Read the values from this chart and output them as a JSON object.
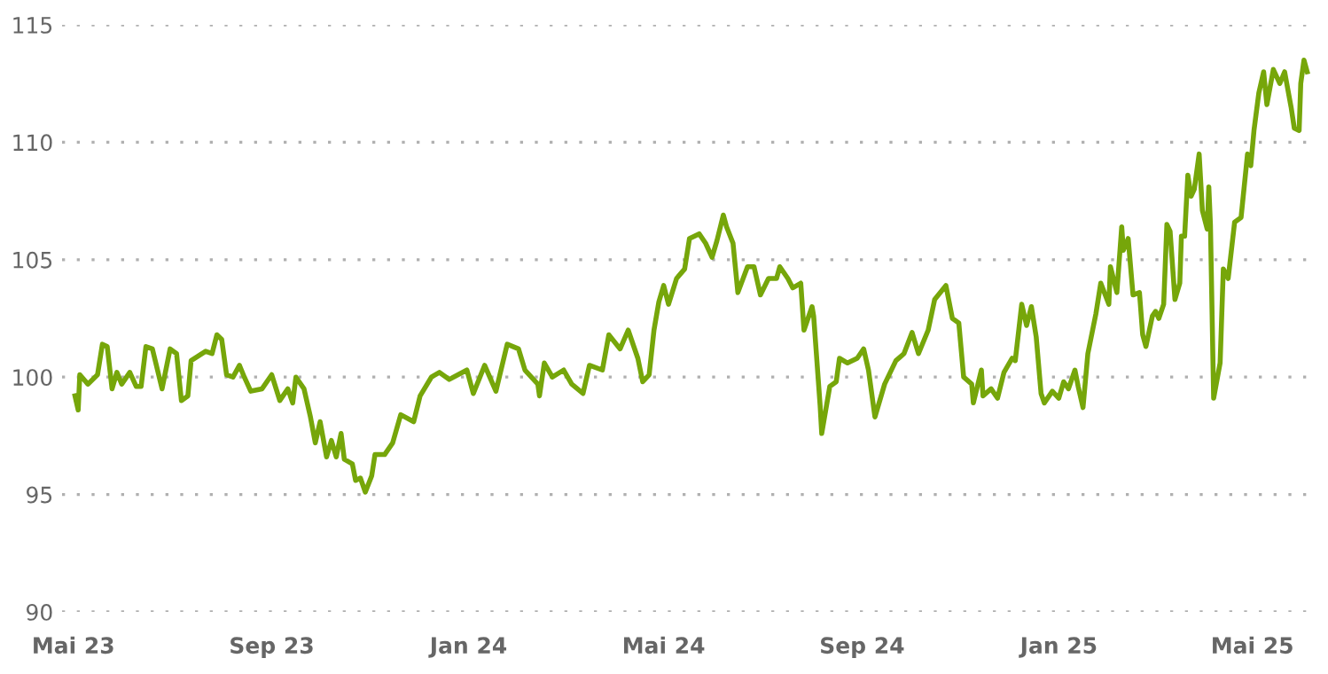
{
  "chart_data": {
    "type": "line",
    "x": [
      "2023-05-02",
      "2023-05-04",
      "2023-05-05",
      "2023-05-10",
      "2023-05-16",
      "2023-05-19",
      "2023-05-22",
      "2023-05-25",
      "2023-05-28",
      "2023-05-31",
      "2023-06-05",
      "2023-06-09",
      "2023-06-12",
      "2023-06-15",
      "2023-06-19",
      "2023-06-25",
      "2023-06-30",
      "2023-07-04",
      "2023-07-07",
      "2023-07-11",
      "2023-07-13",
      "2023-07-22",
      "2023-07-26",
      "2023-07-29",
      "2023-08-01",
      "2023-08-04",
      "2023-08-08",
      "2023-08-12",
      "2023-08-15",
      "2023-08-19",
      "2023-08-26",
      "2023-09-01",
      "2023-09-06",
      "2023-09-11",
      "2023-09-14",
      "2023-09-16",
      "2023-09-21",
      "2023-09-25",
      "2023-09-28",
      "2023-10-01",
      "2023-10-05",
      "2023-10-08",
      "2023-10-11",
      "2023-10-14",
      "2023-10-16",
      "2023-10-21",
      "2023-10-23",
      "2023-10-26",
      "2023-10-29",
      "2023-11-02",
      "2023-11-04",
      "2023-11-10",
      "2023-11-15",
      "2023-11-20",
      "2023-11-28",
      "2023-12-02",
      "2023-12-09",
      "2023-12-14",
      "2023-12-20",
      "2023-12-31",
      "2024-01-04",
      "2024-01-11",
      "2024-01-18",
      "2024-01-25",
      "2024-02-01",
      "2024-02-05",
      "2024-02-13",
      "2024-02-14",
      "2024-02-17",
      "2024-02-22",
      "2024-02-29",
      "2024-03-05",
      "2024-03-12",
      "2024-03-16",
      "2024-03-24",
      "2024-03-28",
      "2024-04-04",
      "2024-04-09",
      "2024-04-15",
      "2024-04-18",
      "2024-04-22",
      "2024-04-25",
      "2024-04-28",
      "2024-05-01",
      "2024-05-04",
      "2024-05-09",
      "2024-05-14",
      "2024-05-17",
      "2024-05-23",
      "2024-05-27",
      "2024-05-31",
      "2024-06-03",
      "2024-06-07",
      "2024-06-09",
      "2024-06-13",
      "2024-06-16",
      "2024-06-22",
      "2024-06-26",
      "2024-06-30",
      "2024-07-05",
      "2024-07-10",
      "2024-07-12",
      "2024-07-17",
      "2024-07-20",
      "2024-07-25",
      "2024-07-27",
      "2024-08-01",
      "2024-08-02",
      "2024-08-06",
      "2024-08-07",
      "2024-08-12",
      "2024-08-16",
      "2024-08-18",
      "2024-08-23",
      "2024-08-29",
      "2024-09-02",
      "2024-09-05",
      "2024-09-09",
      "2024-09-15",
      "2024-09-22",
      "2024-09-27",
      "2024-10-02",
      "2024-10-06",
      "2024-10-12",
      "2024-10-16",
      "2024-10-23",
      "2024-10-27",
      "2024-10-31",
      "2024-11-03",
      "2024-11-08",
      "2024-11-09",
      "2024-11-14",
      "2024-11-15",
      "2024-11-20",
      "2024-11-24",
      "2024-11-28",
      "2024-12-03",
      "2024-12-05",
      "2024-12-09",
      "2024-12-12",
      "2024-12-15",
      "2024-12-18",
      "2024-12-21",
      "2024-12-23",
      "2024-12-28",
      "2025-01-01",
      "2025-01-04",
      "2025-01-07",
      "2025-01-11",
      "2025-01-13",
      "2025-01-16",
      "2025-01-19",
      "2025-01-24",
      "2025-01-27",
      "2025-02-01",
      "2025-02-02",
      "2025-02-06",
      "2025-02-09",
      "2025-02-10",
      "2025-02-13",
      "2025-02-16",
      "2025-02-20",
      "2025-02-22",
      "2025-02-24",
      "2025-02-28",
      "2025-03-02",
      "2025-03-04",
      "2025-03-07",
      "2025-03-09",
      "2025-03-11",
      "2025-03-14",
      "2025-03-17",
      "2025-03-18",
      "2025-03-20",
      "2025-03-22",
      "2025-03-24",
      "2025-03-26",
      "2025-03-29",
      "2025-03-31",
      "2025-04-03",
      "2025-04-04",
      "2025-04-05",
      "2025-04-07",
      "2025-04-11",
      "2025-04-13",
      "2025-04-16",
      "2025-04-20",
      "2025-04-24",
      "2025-04-28",
      "2025-04-30",
      "2025-05-02",
      "2025-05-05",
      "2025-05-08",
      "2025-05-10",
      "2025-05-14",
      "2025-05-18",
      "2025-05-21",
      "2025-05-25",
      "2025-05-27",
      "2025-05-30",
      "2025-05-31",
      "2025-06-02",
      "2025-06-04"
    ],
    "series": [
      {
        "color": "#76a60a",
        "values": [
          99.2,
          98.6,
          100.1,
          99.7,
          100.1,
          101.4,
          101.3,
          99.5,
          100.2,
          99.7,
          100.2,
          99.6,
          99.6,
          101.3,
          101.2,
          99.5,
          101.2,
          101.0,
          99.0,
          99.2,
          100.7,
          101.1,
          101.0,
          101.8,
          101.6,
          100.1,
          100.0,
          100.5,
          100.0,
          99.4,
          99.5,
          100.1,
          99.0,
          99.5,
          98.9,
          100.0,
          99.5,
          98.3,
          97.2,
          98.1,
          96.6,
          97.3,
          96.6,
          97.6,
          96.5,
          96.3,
          95.6,
          95.7,
          95.1,
          95.8,
          96.7,
          96.7,
          97.2,
          98.4,
          98.1,
          99.2,
          100.0,
          100.2,
          99.9,
          100.3,
          99.3,
          100.5,
          99.4,
          101.4,
          101.2,
          100.3,
          99.7,
          99.2,
          100.6,
          100.0,
          100.3,
          99.7,
          99.3,
          100.5,
          100.3,
          101.8,
          101.2,
          102.0,
          100.8,
          99.8,
          100.1,
          102.0,
          103.2,
          103.9,
          103.1,
          104.2,
          104.6,
          105.9,
          106.1,
          105.7,
          105.1,
          105.8,
          106.9,
          106.4,
          105.7,
          103.6,
          104.7,
          104.7,
          103.5,
          104.2,
          104.2,
          104.7,
          104.2,
          103.8,
          104.0,
          102.0,
          103.0,
          102.6,
          98.8,
          97.6,
          99.6,
          99.8,
          100.8,
          100.6,
          100.8,
          101.2,
          100.3,
          98.3,
          99.7,
          100.7,
          101.0,
          101.9,
          101.0,
          102.0,
          103.3,
          103.9,
          102.5,
          102.3,
          100.0,
          99.7,
          98.9,
          100.3,
          99.2,
          99.5,
          99.1,
          100.2,
          100.8,
          100.7,
          103.1,
          102.2,
          103.0,
          101.7,
          99.3,
          98.9,
          99.4,
          99.1,
          99.8,
          99.5,
          100.3,
          99.6,
          98.7,
          101.0,
          102.7,
          104.0,
          103.1,
          104.7,
          103.6,
          106.4,
          105.4,
          105.9,
          103.5,
          103.6,
          101.8,
          101.3,
          102.6,
          102.8,
          102.5,
          103.1,
          106.5,
          106.2,
          103.3,
          104.0,
          106.0,
          106.0,
          108.6,
          107.7,
          108.0,
          109.5,
          107.1,
          106.3,
          108.1,
          106.5,
          99.1,
          100.6,
          104.6,
          104.2,
          106.6,
          106.8,
          109.5,
          109.0,
          110.5,
          112.1,
          113.0,
          111.6,
          113.1,
          112.5,
          113.0,
          111.5,
          110.6,
          110.5,
          112.5,
          113.5,
          113.0
        ]
      }
    ],
    "xlim": [
      "2023-04-24",
      "2025-06-07"
    ],
    "xticks": [
      {
        "value": "2023-05-01",
        "label": "Mai 23"
      },
      {
        "value": "2023-09-01",
        "label": "Sep 23"
      },
      {
        "value": "2024-01-01",
        "label": "Jan 24"
      },
      {
        "value": "2024-05-01",
        "label": "Mai 24"
      },
      {
        "value": "2024-09-01",
        "label": "Sep 24"
      },
      {
        "value": "2025-01-01",
        "label": "Jan 25"
      },
      {
        "value": "2025-05-01",
        "label": "Mai 25"
      }
    ],
    "ylim": [
      90,
      115
    ],
    "yticks": [
      90,
      95,
      100,
      105,
      110,
      115
    ],
    "grid": "y",
    "legend": false,
    "marker": "none",
    "line_style": "solid"
  }
}
